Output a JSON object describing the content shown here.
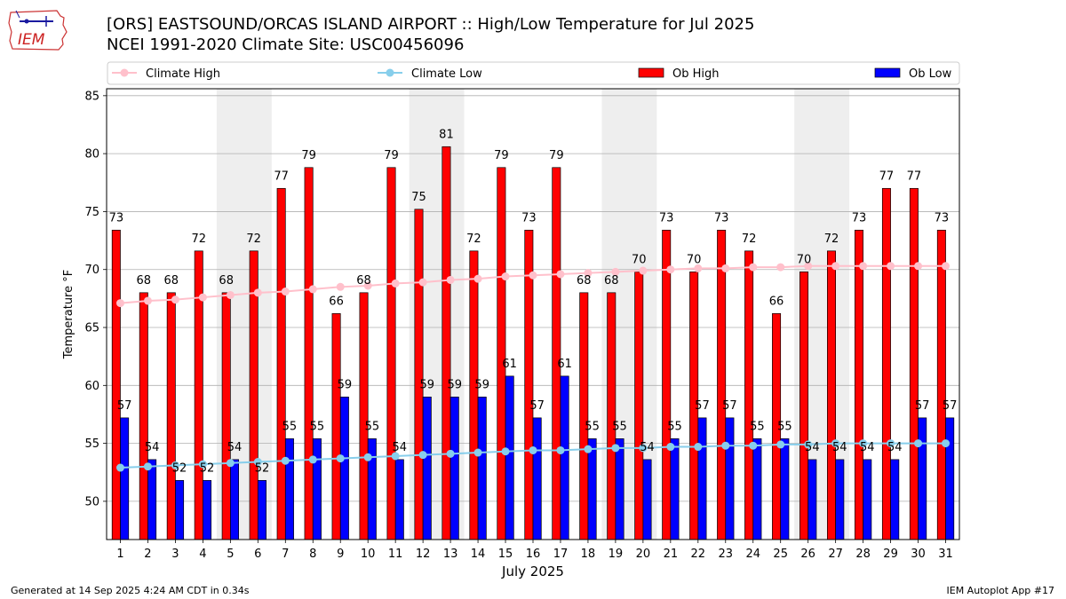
{
  "header": {
    "title_line1": "[ORS] EASTSOUND/ORCAS ISLAND AIRPORT :: High/Low Temperature for Jul 2025",
    "title_line2": "NCEI 1991-2020 Climate Site: USC00456096"
  },
  "logo": {
    "text": "IEM"
  },
  "footer": {
    "left": "Generated at 14 Sep 2025 4:24 AM CDT in 0.34s",
    "right": "IEM Autoplot App #17"
  },
  "colors": {
    "ob_high": "#ff0000",
    "ob_low": "#0000ff",
    "climate_high": "#ffc0cb",
    "climate_low": "#87ceeb",
    "weekend_shade": "#eeeeee",
    "grid": "#b0b0b0"
  },
  "chart_data": {
    "type": "bar",
    "xlabel": "July 2025",
    "ylabel": "Temperature °F",
    "ylim": [
      46.7,
      85.6
    ],
    "yticks": [
      50,
      55,
      60,
      65,
      70,
      75,
      80,
      85
    ],
    "grid": "horizontal",
    "legend_position": "top",
    "categories": [
      "1",
      "2",
      "3",
      "4",
      "5",
      "6",
      "7",
      "8",
      "9",
      "10",
      "11",
      "12",
      "13",
      "14",
      "15",
      "16",
      "17",
      "18",
      "19",
      "20",
      "21",
      "22",
      "23",
      "24",
      "25",
      "26",
      "27",
      "28",
      "29",
      "30",
      "31"
    ],
    "shaded_weeks": [
      [
        5,
        6
      ],
      [
        12,
        13
      ],
      [
        19,
        20
      ],
      [
        26,
        27
      ]
    ],
    "series": [
      {
        "name": "Ob High",
        "kind": "bar",
        "values": [
          73.4,
          68,
          68,
          71.6,
          68,
          71.6,
          77,
          78.8,
          66.2,
          68,
          78.8,
          75.2,
          80.6,
          71.6,
          78.8,
          73.4,
          78.8,
          68,
          68,
          69.8,
          73.4,
          69.8,
          73.4,
          71.6,
          66.2,
          69.8,
          71.6,
          73.4,
          77,
          77,
          73.4
        ],
        "labels": [
          "73",
          "68",
          "68",
          "72",
          "68",
          "72",
          "77",
          "79",
          "66",
          "68",
          "79",
          "75",
          "81",
          "72",
          "79",
          "73",
          "79",
          "68",
          "68",
          "70",
          "73",
          "70",
          "73",
          "72",
          "66",
          "70",
          "72",
          "73",
          "77",
          "77",
          "73"
        ]
      },
      {
        "name": "Ob Low",
        "kind": "bar",
        "values": [
          57.2,
          53.6,
          51.8,
          51.8,
          53.6,
          51.8,
          55.4,
          55.4,
          59,
          55.4,
          53.6,
          59,
          59,
          59,
          60.8,
          57.2,
          60.8,
          55.4,
          55.4,
          53.6,
          55.4,
          57.2,
          57.2,
          55.4,
          55.4,
          53.6,
          53.6,
          53.6,
          53.6,
          57.2,
          57.2
        ],
        "labels": [
          "57",
          "54",
          "52",
          "52",
          "54",
          "52",
          "55",
          "55",
          "59",
          "55",
          "54",
          "59",
          "59",
          "59",
          "61",
          "57",
          "61",
          "55",
          "55",
          "54",
          "55",
          "57",
          "57",
          "55",
          "55",
          "54",
          "54",
          "54",
          "54",
          "57",
          "57"
        ]
      },
      {
        "name": "Climate High",
        "kind": "line",
        "values": [
          67.1,
          67.3,
          67.4,
          67.6,
          67.8,
          68.0,
          68.1,
          68.3,
          68.5,
          68.6,
          68.8,
          68.9,
          69.1,
          69.2,
          69.4,
          69.5,
          69.6,
          69.7,
          69.8,
          69.9,
          70.0,
          70.1,
          70.1,
          70.2,
          70.2,
          70.3,
          70.3,
          70.3,
          70.3,
          70.3,
          70.3
        ]
      },
      {
        "name": "Climate Low",
        "kind": "line",
        "values": [
          52.9,
          53.0,
          53.1,
          53.2,
          53.3,
          53.4,
          53.5,
          53.6,
          53.7,
          53.8,
          53.9,
          54.0,
          54.1,
          54.2,
          54.3,
          54.4,
          54.4,
          54.5,
          54.6,
          54.6,
          54.7,
          54.7,
          54.8,
          54.8,
          54.9,
          54.9,
          55.0,
          55.0,
          55.0,
          55.0,
          55.0
        ]
      }
    ]
  }
}
